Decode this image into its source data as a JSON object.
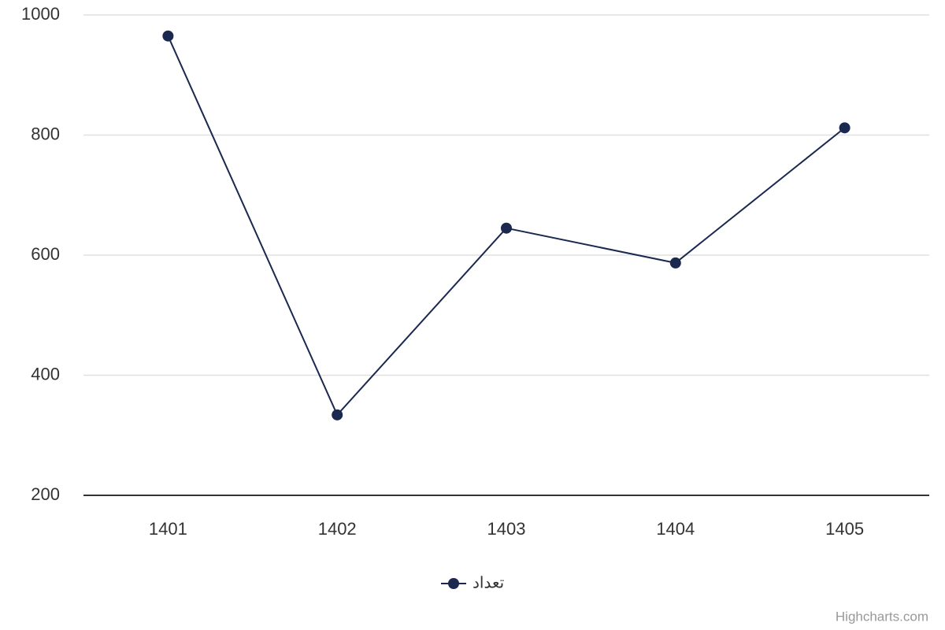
{
  "chart_data": {
    "type": "line",
    "categories": [
      "1401",
      "1402",
      "1403",
      "1404",
      "1405"
    ],
    "series": [
      {
        "name": "تعداد",
        "color": "#1b2850",
        "values": [
          965,
          334,
          645,
          587,
          812
        ]
      }
    ],
    "ylim": [
      200,
      1000
    ],
    "yticks": [
      200,
      400,
      600,
      800,
      1000
    ],
    "grid": true,
    "legend": "bottom",
    "credits": "Highcharts.com"
  }
}
